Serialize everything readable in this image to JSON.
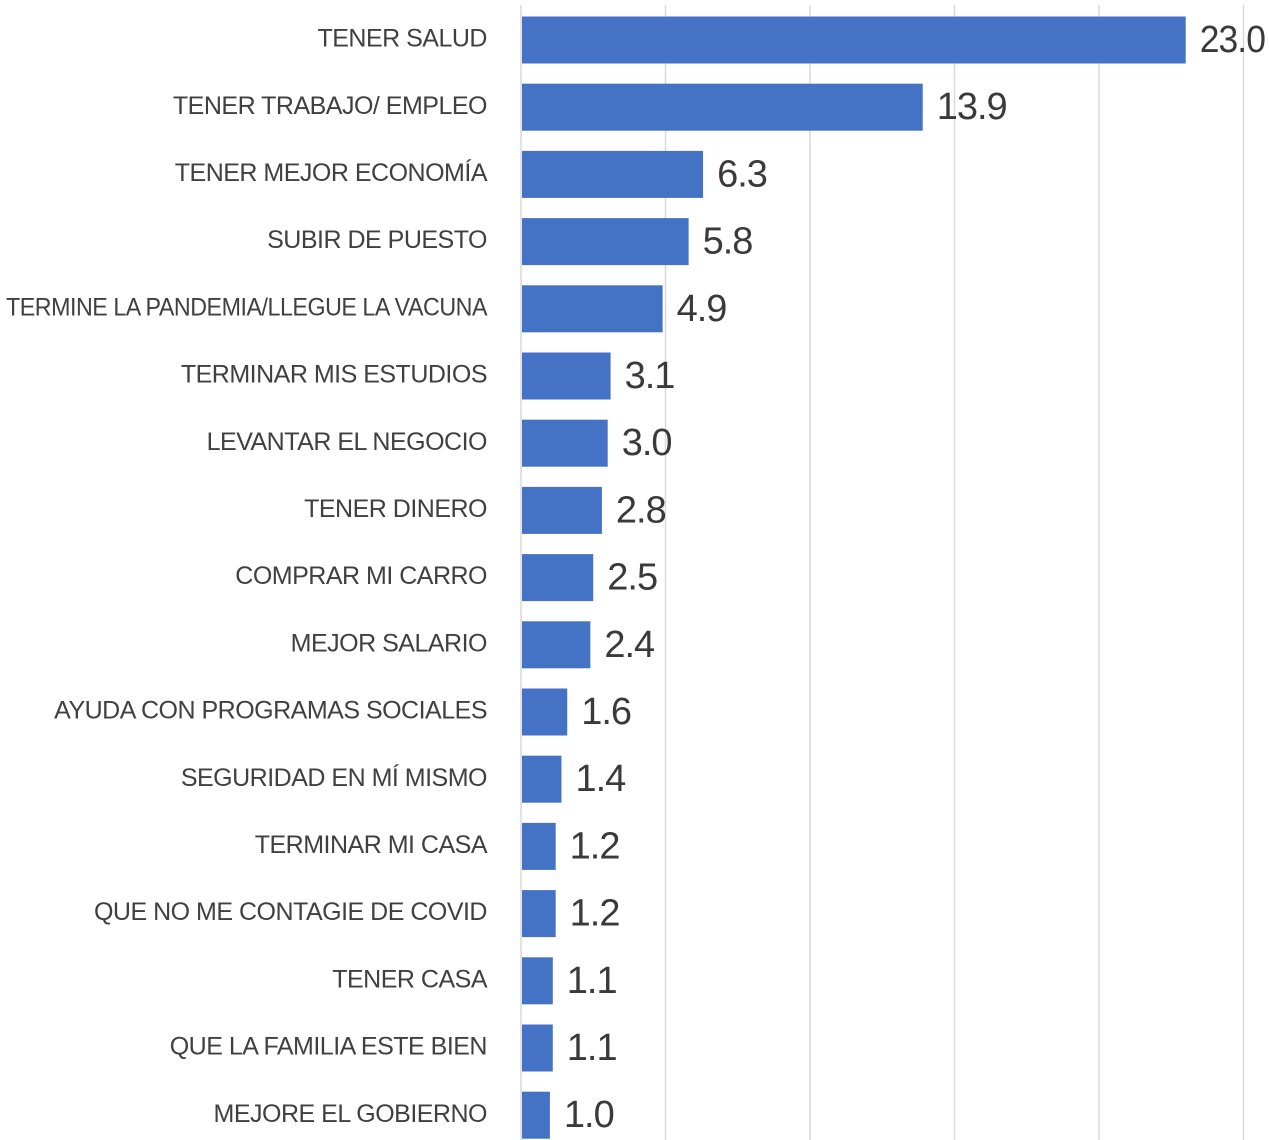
{
  "chart_data": {
    "type": "bar",
    "orientation": "horizontal",
    "title": "",
    "xlabel": "",
    "ylabel": "",
    "xlim": [
      0,
      25
    ],
    "grid": true,
    "legend": "none",
    "bar_color": "#4472c4",
    "categories": [
      "TENER SALUD",
      "TENER TRABAJO/ EMPLEO",
      "TENER MEJOR ECONOMÍA",
      "SUBIR DE PUESTO",
      "TERMINE LA PANDEMIA/LLEGUE LA VACUNA",
      "TERMINAR MIS ESTUDIOS",
      "LEVANTAR EL NEGOCIO",
      "TENER DINERO",
      "COMPRAR MI CARRO",
      "MEJOR SALARIO",
      "AYUDA CON PROGRAMAS SOCIALES",
      "SEGURIDAD EN MÍ MISMO",
      "TERMINAR MI CASA",
      "QUE NO ME CONTAGIE DE COVID",
      "TENER CASA",
      "QUE LA FAMILIA ESTE BIEN",
      "MEJORE EL GOBIERNO"
    ],
    "values": [
      23.0,
      13.9,
      6.3,
      5.8,
      4.9,
      3.1,
      3.0,
      2.8,
      2.5,
      2.4,
      1.6,
      1.4,
      1.2,
      1.2,
      1.1,
      1.1,
      1.0
    ],
    "value_labels": [
      "23.0",
      "13.9",
      "6.3",
      "5.8",
      "4.9",
      "3.1",
      "3.0",
      "2.8",
      "2.5",
      "2.4",
      "1.6",
      "1.4",
      "1.2",
      "1.2",
      "1.1",
      "1.1",
      "1.0"
    ]
  }
}
